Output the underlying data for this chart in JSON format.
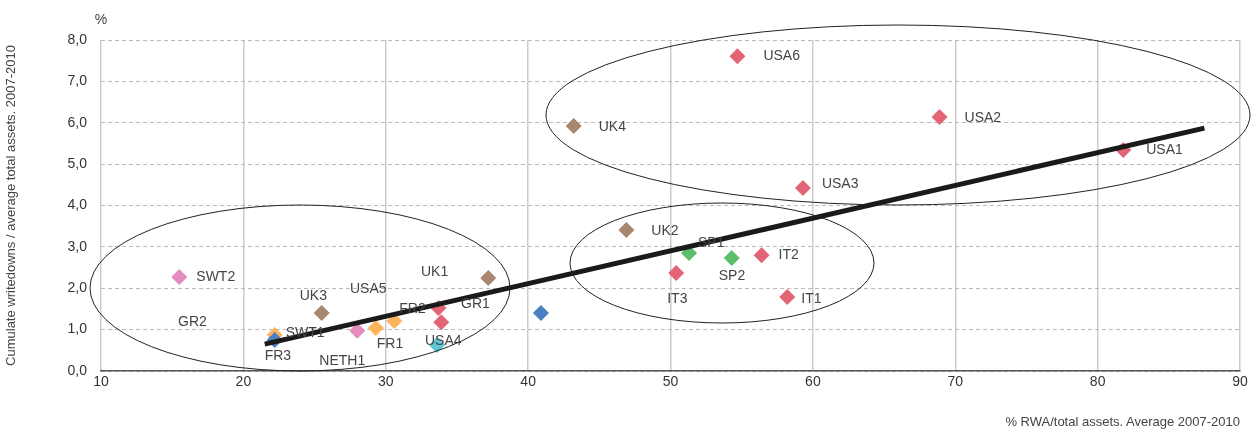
{
  "chart_data": {
    "type": "scatter",
    "xlabel": "% RWA/total assets. Average 2007-2010",
    "ylabel": "Cumulate writedowns / average total assets. 2007-2010",
    "xlim": [
      10,
      90
    ],
    "xticks": [
      10,
      20,
      30,
      40,
      50,
      60,
      70,
      80,
      90
    ],
    "ylim": [
      0,
      8
    ],
    "yticks": [
      {
        "value": 0,
        "label": "0,0"
      },
      {
        "value": 1,
        "label": "1,0"
      },
      {
        "value": 2,
        "label": "2,0"
      },
      {
        "value": 3,
        "label": "3,0"
      },
      {
        "value": 4,
        "label": "4,0"
      },
      {
        "value": 5,
        "label": "5,0"
      },
      {
        "value": 6,
        "label": "6,0"
      },
      {
        "value": 7,
        "label": "7,0"
      },
      {
        "value": 8,
        "label": "8,0"
      }
    ],
    "grid": true,
    "legend": false,
    "marker": "diamond",
    "series": [
      {
        "color": "#e68bbd",
        "x": [
          15.5,
          28.0
        ],
        "values": [
          2.27,
          0.97
        ]
      },
      {
        "color": "#a88770",
        "x": [
          25.5,
          37.2,
          46.9,
          43.2
        ],
        "values": [
          1.4,
          2.25,
          3.41,
          5.92
        ]
      },
      {
        "color": "#fbb45c",
        "x": [
          22.2,
          29.3,
          30.6
        ],
        "values": [
          0.87,
          1.04,
          1.21
        ]
      },
      {
        "color": "#4a7fc1",
        "x": [
          22.2,
          40.9
        ],
        "values": [
          0.75,
          1.4
        ]
      },
      {
        "color": "#e36474",
        "x": [
          33.7,
          33.9,
          56.4,
          50.4,
          58.2,
          54.7,
          68.9,
          81.8,
          59.3
        ],
        "values": [
          1.52,
          1.18,
          2.8,
          2.37,
          1.79,
          7.61,
          6.14,
          5.34,
          4.42
        ]
      },
      {
        "color": "#5cc8d4",
        "x": [
          33.6
        ],
        "values": [
          0.63
        ]
      },
      {
        "color": "#5cbd6a",
        "x": [
          51.3,
          54.3
        ],
        "values": [
          2.85,
          2.73
        ]
      },
      {
        "type": "line",
        "color": "#1a1a1a",
        "marker": "none",
        "x": [
          21.5,
          87.5
        ],
        "values": [
          0.65,
          5.87
        ]
      }
    ],
    "annotations": [
      "%",
      "GR2",
      "USA5",
      "UK1",
      "GR1",
      {
        "text": "SWT2",
        "x": 15.5,
        "y": 2.27
      },
      {
        "text": "UK3",
        "x": 25.5,
        "y": 1.4
      },
      {
        "text": "SWT1",
        "x": 22.2,
        "y": 0.87
      },
      {
        "text": "FR3",
        "x": 22.2,
        "y": 0.75
      },
      {
        "text": "NETH1",
        "x": 28.0,
        "y": 0.97
      },
      {
        "text": "FR1",
        "x": 29.3,
        "y": 1.04
      },
      {
        "text": "FR2",
        "x": 30.6,
        "y": 1.21
      },
      {
        "text": "USA4",
        "x": 33.6,
        "y": 0.63
      },
      {
        "text": "UK2",
        "x": 46.9,
        "y": 3.41
      },
      {
        "text": "SP1",
        "x": 51.3,
        "y": 2.85
      },
      {
        "text": "SP2",
        "x": 54.3,
        "y": 2.73
      },
      {
        "text": "IT2",
        "x": 56.4,
        "y": 2.8
      },
      {
        "text": "IT3",
        "x": 50.4,
        "y": 2.37
      },
      {
        "text": "IT1",
        "x": 58.2,
        "y": 1.79
      },
      {
        "text": "UK4",
        "x": 43.2,
        "y": 5.92
      },
      {
        "text": "USA6",
        "x": 54.7,
        "y": 7.61
      },
      {
        "text": "USA2",
        "x": 68.9,
        "y": 6.14
      },
      {
        "text": "USA1",
        "x": 81.8,
        "y": 5.34
      },
      {
        "text": "USA3",
        "x": 59.3,
        "y": 4.42
      }
    ]
  }
}
